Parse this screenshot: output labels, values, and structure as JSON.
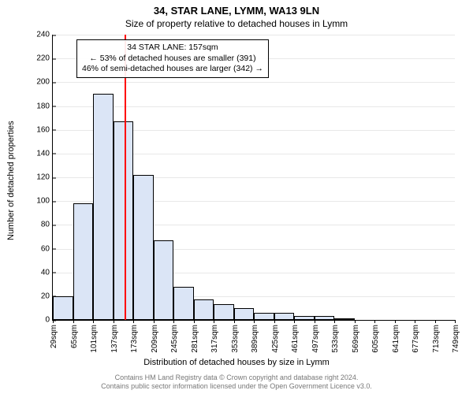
{
  "title": "34, STAR LANE, LYMM, WA13 9LN",
  "subtitle": "Size of property relative to detached houses in Lymm",
  "ylabel": "Number of detached properties",
  "xlabel": "Distribution of detached houses by size in Lymm",
  "footer_line1": "Contains HM Land Registry data © Crown copyright and database right 2024.",
  "footer_line2": "Contains public sector information licensed under the Open Government Licence v3.0.",
  "chart": {
    "type": "histogram",
    "background_color": "#ffffff",
    "grid_color": "#e8e8e8",
    "axis_color": "#000000",
    "bar_fill": "#dbe5f6",
    "bar_stroke": "#000000",
    "ref_line_color": "#ff0000",
    "ylim": [
      0,
      240
    ],
    "yticks": [
      0,
      20,
      40,
      60,
      80,
      100,
      120,
      140,
      160,
      180,
      200,
      220,
      240
    ],
    "xticks": [
      "29sqm",
      "65sqm",
      "101sqm",
      "137sqm",
      "173sqm",
      "209sqm",
      "245sqm",
      "281sqm",
      "317sqm",
      "353sqm",
      "389sqm",
      "425sqm",
      "461sqm",
      "497sqm",
      "533sqm",
      "569sqm",
      "605sqm",
      "641sqm",
      "677sqm",
      "713sqm",
      "749sqm"
    ],
    "values": [
      20,
      98,
      190,
      167,
      122,
      67,
      28,
      17,
      13,
      10,
      6,
      6,
      3,
      3,
      1,
      0,
      0,
      0,
      0,
      0
    ],
    "ref_value": 157,
    "ref_x_min": 29,
    "ref_x_max": 749,
    "title_fontsize": 13,
    "subtitle_fontsize": 12,
    "axis_label_fontsize": 11,
    "tick_fontsize": 10
  },
  "annotation": {
    "line1": "34 STAR LANE: 157sqm",
    "line2": "← 53% of detached houses are smaller (391)",
    "line3": "46% of semi-detached houses are larger (342) →"
  }
}
